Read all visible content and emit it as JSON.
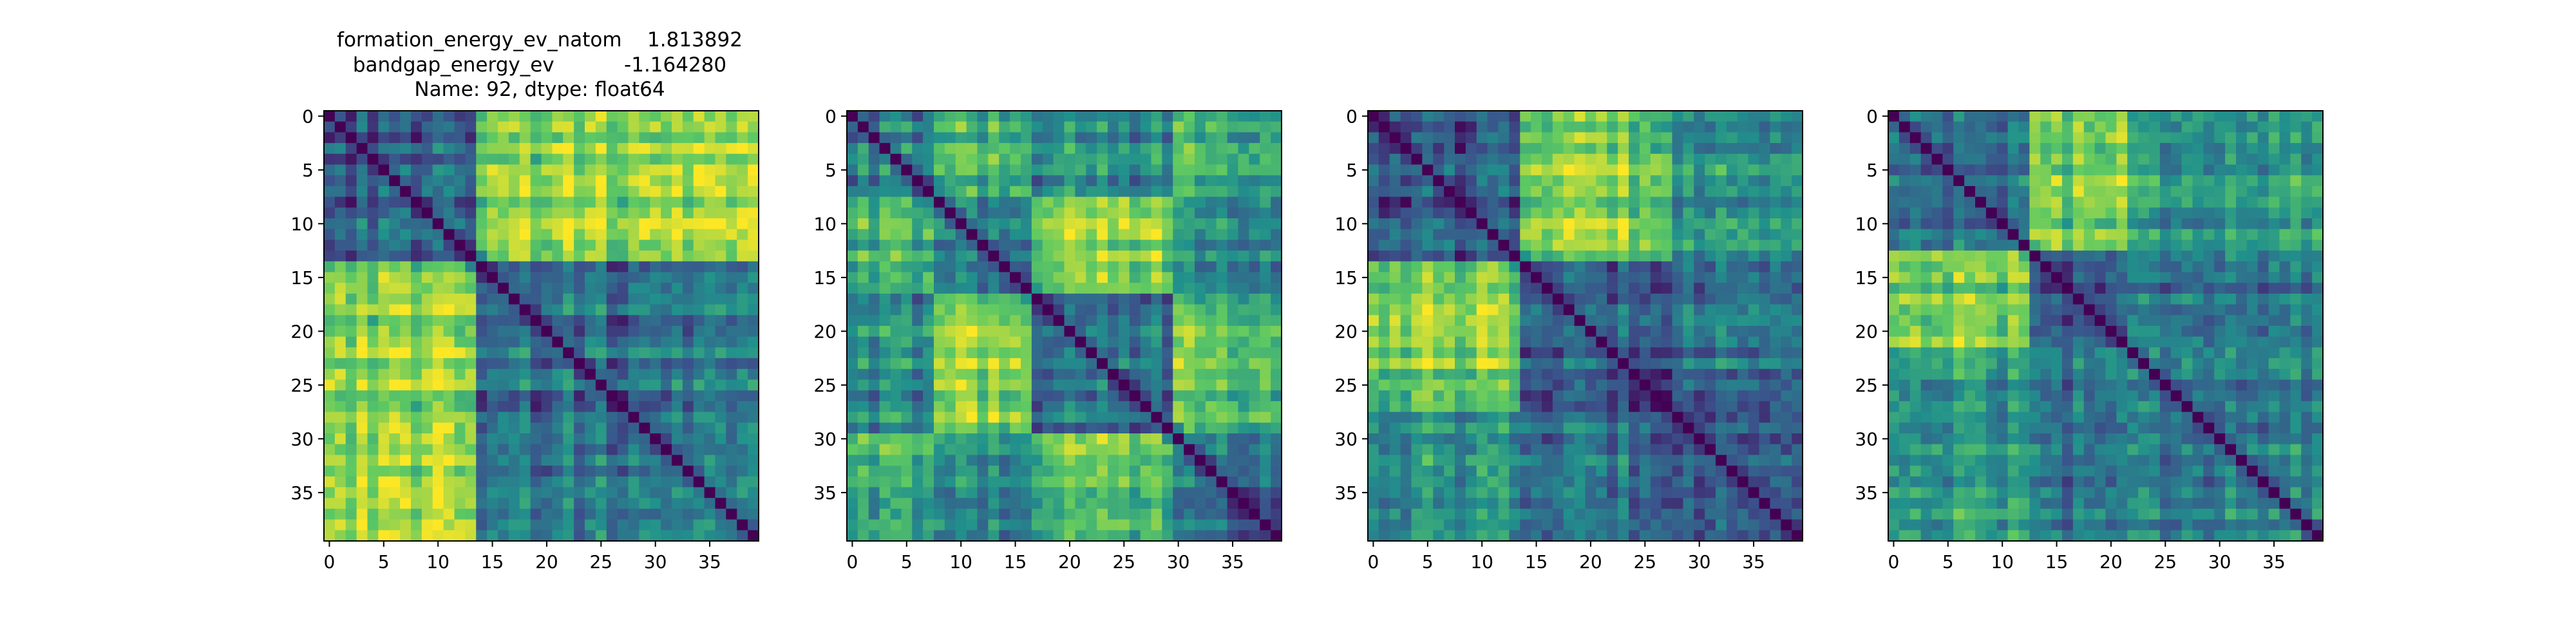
{
  "figure": {
    "title_lines": [
      "formation_energy_ev_natom    1.813892",
      "bandgap_energy_ev           -1.164280",
      "Name: 92, dtype: float64"
    ]
  },
  "colormap": [
    "#440154",
    "#3b528b",
    "#21918c",
    "#5ec962",
    "#fde725"
  ],
  "chart_data": [
    {
      "type": "heatmap",
      "title": "",
      "xlabel": "",
      "ylabel": "",
      "size": 40,
      "x_ticks": [
        0,
        5,
        10,
        15,
        20,
        25,
        30,
        35
      ],
      "y_ticks": [
        0,
        5,
        10,
        15,
        20,
        25,
        30,
        35
      ],
      "diagonal_value": 0,
      "value_range": [
        0,
        1
      ],
      "blocks": [
        0,
        14,
        40
      ],
      "block_levels": [
        [
          0.32,
          0.82
        ],
        [
          0.82,
          0.36
        ]
      ]
    },
    {
      "type": "heatmap",
      "title": "",
      "xlabel": "",
      "ylabel": "",
      "size": 40,
      "x_ticks": [
        0,
        5,
        10,
        15,
        20,
        25,
        30,
        35
      ],
      "y_ticks": [
        0,
        5,
        10,
        15,
        20,
        25,
        30,
        35
      ],
      "diagonal_value": 0,
      "value_range": [
        0,
        1
      ],
      "blocks": [
        0,
        8,
        17,
        30,
        40
      ],
      "block_levels": [
        [
          0.4,
          0.62,
          0.45,
          0.62
        ],
        [
          0.62,
          0.4,
          0.8,
          0.48
        ],
        [
          0.45,
          0.8,
          0.35,
          0.72
        ],
        [
          0.62,
          0.48,
          0.72,
          0.4
        ]
      ]
    },
    {
      "type": "heatmap",
      "title": "",
      "xlabel": "",
      "ylabel": "",
      "size": 40,
      "x_ticks": [
        0,
        5,
        10,
        15,
        20,
        25,
        30,
        35
      ],
      "y_ticks": [
        0,
        5,
        10,
        15,
        20,
        25,
        30,
        35
      ],
      "diagonal_value": 0,
      "value_range": [
        0,
        1
      ],
      "blocks": [
        0,
        14,
        28,
        40
      ],
      "block_levels": [
        [
          0.3,
          0.78,
          0.52
        ],
        [
          0.78,
          0.3,
          0.4
        ],
        [
          0.52,
          0.4,
          0.35
        ]
      ]
    },
    {
      "type": "heatmap",
      "title": "",
      "xlabel": "",
      "ylabel": "",
      "size": 40,
      "x_ticks": [
        0,
        5,
        10,
        15,
        20,
        25,
        30,
        35
      ],
      "y_ticks": [
        0,
        5,
        10,
        15,
        20,
        25,
        30,
        35
      ],
      "diagonal_value": 0,
      "value_range": [
        0,
        1
      ],
      "blocks": [
        0,
        13,
        22,
        40
      ],
      "block_levels": [
        [
          0.38,
          0.8,
          0.55
        ],
        [
          0.8,
          0.3,
          0.42
        ],
        [
          0.55,
          0.42,
          0.45
        ]
      ]
    }
  ]
}
